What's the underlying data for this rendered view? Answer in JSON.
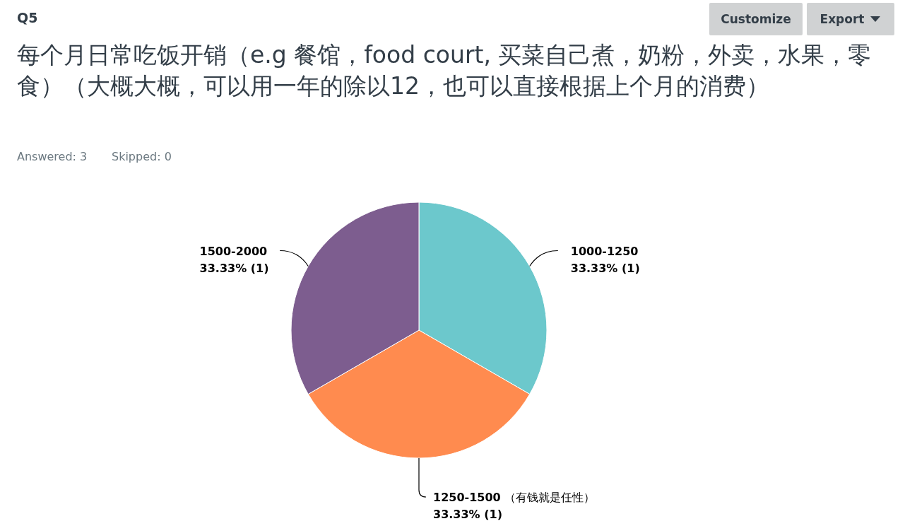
{
  "chart_data": {
    "type": "pie",
    "subtitle": "Q5",
    "title": "每个月日常吃饭开销（e.g 餐馆，food court, 买菜自己煮，奶粉，外卖，水果，零食）（大概大概，可以用一年的除以12，也可以直接根据上个月的消费）",
    "annotations": [
      "Answered: 3",
      "Skipped: 0",
      "Customize",
      "Export"
    ],
    "categories": [
      "1000-1250",
      "1250-1500 （有钱就是任性）",
      "1500-2000"
    ],
    "values": [
      33.33,
      33.33,
      33.33
    ],
    "value_labels": [
      "33.33% (1)",
      "33.33% (1)",
      "33.33% (1)"
    ],
    "colors": [
      "#6cc8cc",
      "#ff8b4f",
      "#7d5d8f"
    ]
  }
}
